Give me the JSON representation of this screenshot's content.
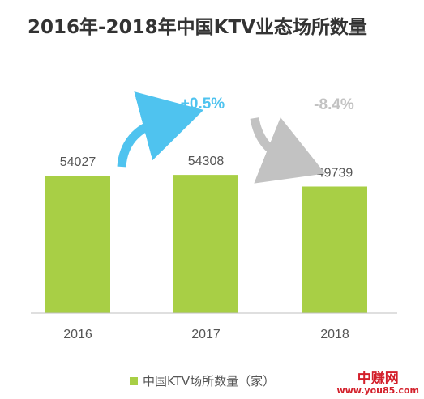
{
  "title": "2016年-2018年中国KTV业态场所数量",
  "colors": {
    "bar": "#a8cf45",
    "increase": "#4fc3ef",
    "decrease": "#c2c2c2",
    "text": "#555555",
    "watermark": "#d31f2a"
  },
  "chart_data": {
    "type": "bar",
    "categories": [
      "2016",
      "2017",
      "2018"
    ],
    "series": [
      {
        "name": "中国KTV场所数量（家）",
        "values": [
          54027,
          54308,
          49739
        ]
      }
    ],
    "ylim": [
      0,
      60000
    ],
    "grid": false,
    "legend_position": "bottom",
    "annotations": [
      {
        "text": "+0.5%",
        "from": "2016",
        "to": "2017",
        "direction": "up"
      },
      {
        "text": "-8.4%",
        "from": "2017",
        "to": "2018",
        "direction": "down"
      }
    ]
  },
  "watermark": {
    "main": "中赚网",
    "url": "www.you85.com"
  }
}
